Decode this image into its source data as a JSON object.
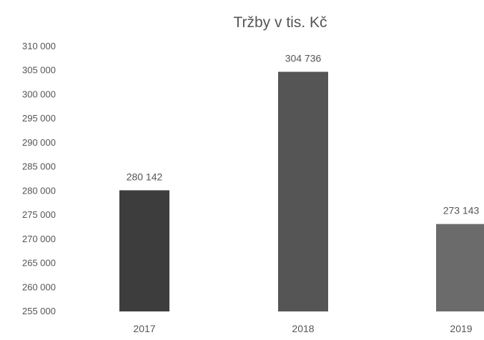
{
  "chart_data": {
    "type": "bar",
    "title": "Tržby v tis. Kč",
    "xlabel": "",
    "ylabel": "",
    "categories": [
      "2017",
      "2018",
      "2019"
    ],
    "values": [
      280142,
      304736,
      273143
    ],
    "value_labels": [
      "280 142",
      "304 736",
      "273 143"
    ],
    "ylim": [
      255000,
      310000
    ],
    "y_ticks": [
      255000,
      260000,
      265000,
      270000,
      275000,
      280000,
      285000,
      290000,
      295000,
      300000,
      305000,
      310000
    ],
    "y_tick_labels": [
      "255 000",
      "260 000",
      "265 000",
      "270 000",
      "275 000",
      "280 000",
      "285 000",
      "290 000",
      "295 000",
      "300 000",
      "305 000",
      "310 000"
    ],
    "grid": false,
    "legend": "none",
    "bar_colors": [
      "#3d3d3d",
      "#555555",
      "#6b6b6b"
    ],
    "text_color": "#555555"
  }
}
